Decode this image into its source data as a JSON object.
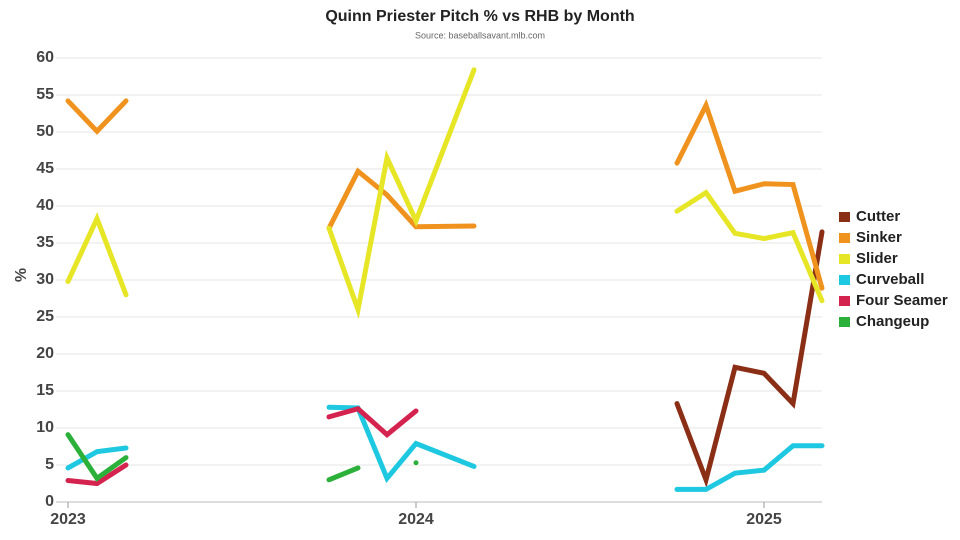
{
  "chart_data": {
    "type": "line",
    "title": "Quinn Priester Pitch % vs RHB by Month",
    "subtitle": "Source: baseballsavant.mlb.com",
    "y_label": "%",
    "x": [
      0,
      1,
      2,
      6,
      9,
      10,
      11,
      12,
      14,
      18,
      21,
      22,
      23,
      24,
      25,
      26
    ],
    "xlim": [
      0,
      26
    ],
    "xticks": [
      {
        "value": 0,
        "label": "2023"
      },
      {
        "value": 12,
        "label": "2024"
      },
      {
        "value": 24,
        "label": "2025"
      }
    ],
    "ylim": [
      0,
      60
    ],
    "yticks": [
      0,
      5,
      10,
      15,
      20,
      25,
      30,
      35,
      40,
      45,
      50,
      55,
      60
    ],
    "grid": true,
    "legend": "right",
    "series": [
      {
        "name": "Cutter",
        "color": "#8b2e16",
        "values": [
          null,
          null,
          null,
          null,
          null,
          null,
          null,
          null,
          null,
          null,
          13.3,
          3,
          18.2,
          17.4,
          13.3,
          36.5
        ]
      },
      {
        "name": "Sinker",
        "color": "#f0931e",
        "values": [
          54.2,
          50.1,
          54.2,
          null,
          37,
          44.7,
          41.5,
          37.2,
          37.3,
          null,
          45.8,
          53.6,
          42,
          43,
          42.9,
          28.9
        ]
      },
      {
        "name": "Slider",
        "color": "#e6e627",
        "values": [
          29.8,
          38.3,
          28,
          null,
          37,
          26,
          46.5,
          38,
          58.4,
          null,
          39.3,
          41.8,
          36.3,
          35.6,
          36.4,
          27.2
        ]
      },
      {
        "name": "Curveball",
        "color": "#1ec8e0",
        "values": [
          4.6,
          6.8,
          7.3,
          null,
          12.8,
          12.7,
          3.2,
          7.9,
          4.8,
          null,
          1.7,
          1.7,
          3.9,
          4.3,
          7.6,
          7.6
        ]
      },
      {
        "name": "Four Seamer",
        "color": "#d4234f",
        "values": [
          2.9,
          2.5,
          5,
          null,
          11.5,
          12.6,
          9.1,
          12.3,
          null,
          null,
          null,
          null,
          null,
          null,
          null,
          null
        ]
      },
      {
        "name": "Changeup",
        "color": "#2bb03a",
        "values": [
          9.1,
          3.2,
          6,
          null,
          3,
          4.6,
          null,
          5.3,
          null,
          null,
          null,
          null,
          null,
          null,
          null,
          null
        ]
      }
    ]
  }
}
